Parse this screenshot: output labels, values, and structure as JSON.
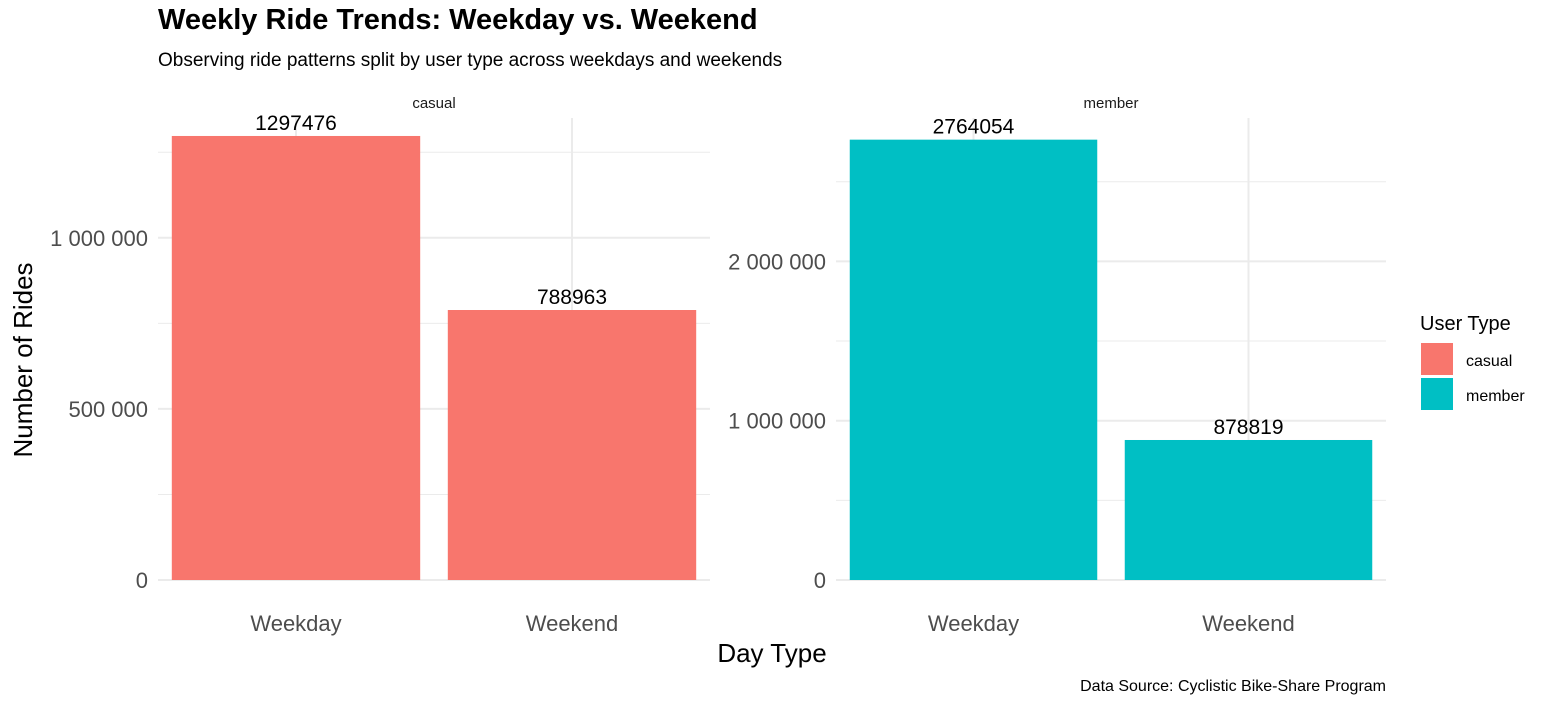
{
  "title": "Weekly Ride Trends: Weekday vs. Weekend",
  "subtitle": "Observing ride patterns split by user type across weekdays and weekends",
  "caption": "Data Source: Cyclistic Bike-Share Program",
  "legend_title": "User Type",
  "colors": {
    "casual": "#F8766D",
    "member": "#00BFC4",
    "grid": "#EBEBEB",
    "axis_text": "#4D4D4D"
  },
  "chart_data": {
    "type": "bar",
    "xlabel": "Day Type",
    "ylabel": "Number of Rides",
    "categories": [
      "Weekday",
      "Weekend"
    ],
    "legend": {
      "title": "User Type",
      "placement": "right",
      "entries": [
        {
          "label": "casual",
          "color": "#F8766D"
        },
        {
          "label": "member",
          "color": "#00BFC4"
        }
      ]
    },
    "grid": true,
    "facets": [
      {
        "label": "casual",
        "color": "#F8766D",
        "values": [
          1297476,
          788963
        ],
        "data_labels": [
          "1297476",
          "788963"
        ],
        "ylim": [
          0,
          1350000
        ],
        "y_ticks": [
          0,
          500000,
          1000000
        ],
        "y_tick_labels": [
          "0",
          "500 000",
          "1 000 000"
        ],
        "y_minor_ticks": [
          250000,
          750000,
          1250000
        ]
      },
      {
        "label": "member",
        "color": "#00BFC4",
        "values": [
          2764054,
          878819
        ],
        "data_labels": [
          "2764054",
          "878819"
        ],
        "ylim": [
          0,
          2900000
        ],
        "y_ticks": [
          0,
          1000000,
          2000000
        ],
        "y_tick_labels": [
          "0",
          "1 000 000",
          "2 000 000"
        ],
        "y_minor_ticks": [
          500000,
          1500000,
          2500000
        ]
      }
    ]
  }
}
